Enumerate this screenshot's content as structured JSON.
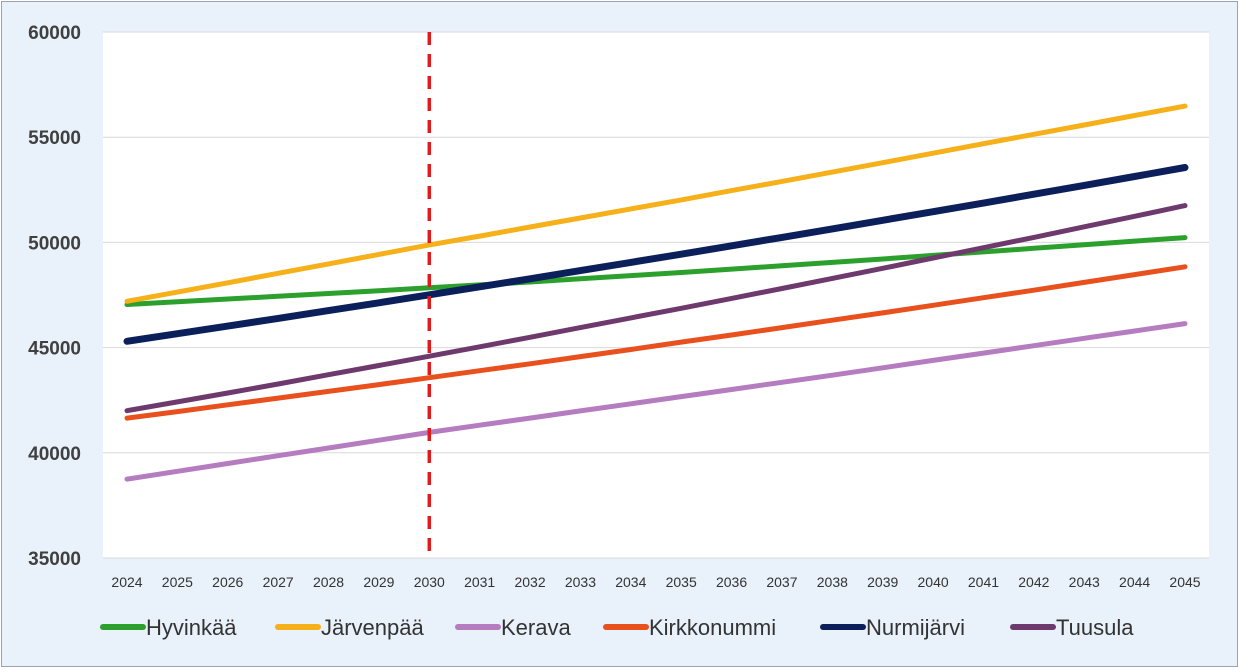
{
  "chart_data": {
    "type": "line",
    "title": "",
    "xlabel": "",
    "ylabel": "",
    "x": [
      2024,
      2025,
      2026,
      2027,
      2028,
      2029,
      2030,
      2031,
      2032,
      2033,
      2034,
      2035,
      2036,
      2037,
      2038,
      2039,
      2040,
      2041,
      2042,
      2043,
      2044,
      2045
    ],
    "ylim": [
      35000,
      60000
    ],
    "yticks": [
      35000,
      40000,
      45000,
      50000,
      55000,
      60000
    ],
    "grid": true,
    "legend_position": "bottom",
    "vertical_marker": {
      "x": 2030,
      "color": "#e31a1c",
      "style": "dashed"
    },
    "series": [
      {
        "name": "Hyvinkää",
        "color": "#2ca02c",
        "values": [
          47050,
          47180,
          47310,
          47440,
          47570,
          47700,
          47840,
          47980,
          48120,
          48270,
          48420,
          48570,
          48730,
          48890,
          49050,
          49210,
          49380,
          49550,
          49720,
          49890,
          50060,
          50230
        ]
      },
      {
        "name": "Järvenpää",
        "color": "#f5b01a",
        "values": [
          47200,
          47640,
          48080,
          48530,
          48980,
          49430,
          49880,
          50300,
          50730,
          51160,
          51590,
          52020,
          52460,
          52900,
          53340,
          53790,
          54240,
          54690,
          55140,
          55580,
          56030,
          56480
        ]
      },
      {
        "name": "Kerava",
        "color": "#b57cc0",
        "values": [
          38750,
          39120,
          39490,
          39860,
          40230,
          40600,
          40970,
          41310,
          41650,
          41990,
          42330,
          42670,
          43010,
          43350,
          43690,
          44040,
          44390,
          44740,
          45090,
          45440,
          45790,
          46140
        ]
      },
      {
        "name": "Kirkkonummi",
        "color": "#e8501e",
        "values": [
          41650,
          41960,
          42280,
          42600,
          42920,
          43240,
          43570,
          43900,
          44230,
          44570,
          44910,
          45260,
          45600,
          45950,
          46300,
          46650,
          47010,
          47370,
          47730,
          48100,
          48470,
          48840
        ]
      },
      {
        "name": "Nurmijärvi",
        "color": "#0b1f5a",
        "values": [
          45300,
          45660,
          46020,
          46390,
          46760,
          47130,
          47510,
          47890,
          48270,
          48660,
          49050,
          49440,
          49840,
          50240,
          50640,
          51050,
          51460,
          51870,
          52290,
          52710,
          53130,
          53560
        ]
      },
      {
        "name": "Tuusula",
        "color": "#6e3a6e",
        "values": [
          42000,
          42420,
          42840,
          43270,
          43710,
          44150,
          44590,
          45040,
          45490,
          45950,
          46410,
          46870,
          47340,
          47810,
          48290,
          48770,
          49260,
          49750,
          50240,
          50740,
          51240,
          51750
        ]
      }
    ]
  }
}
